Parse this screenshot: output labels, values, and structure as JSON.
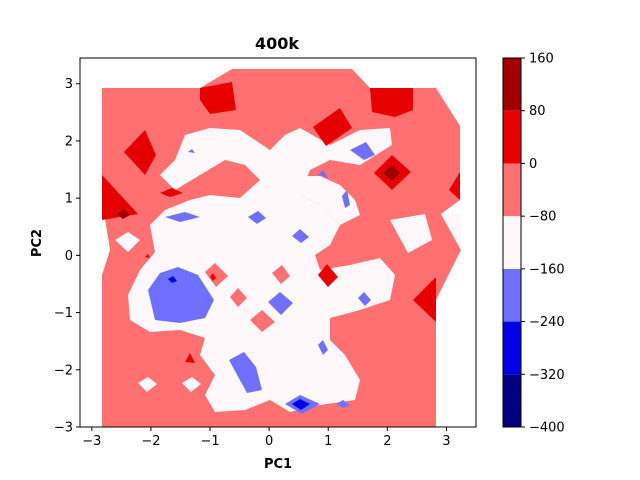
{
  "chart_data": {
    "type": "contour",
    "title": "400k",
    "xlabel": "PC1",
    "ylabel": "PC2",
    "xlim": [
      -3.2,
      3.5
    ],
    "ylim": [
      -3,
      3.45
    ],
    "xticks": [
      -3,
      -2,
      -1,
      0,
      1,
      2,
      3
    ],
    "xtick_labels": [
      "−3",
      "−2",
      "−1",
      "0",
      "1",
      "2",
      "3"
    ],
    "yticks": [
      -3,
      -2,
      -1,
      0,
      1,
      2,
      3
    ],
    "ytick_labels": [
      "−3",
      "−2",
      "−1",
      "0",
      "1",
      "2",
      "3"
    ],
    "colorbar": {
      "levels": [
        -400,
        -320,
        -240,
        -160,
        -80,
        0,
        80,
        160
      ],
      "tick_labels": [
        "−400",
        "−320",
        "−240",
        "−160",
        "−80",
        "0",
        "80",
        "160"
      ],
      "colors": [
        "#000080",
        "#0000e6",
        "#7070ff",
        "#fff8fb",
        "#ff7070",
        "#e60000",
        "#a00000"
      ]
    },
    "palette": {
      "band_neg160_neg80": "#fff8fb",
      "band_neg80_0": "#ff7070",
      "band_0_80": "#e60000",
      "band_80_160": "#a00000",
      "band_neg240_neg160": "#7070ff",
      "band_neg320_neg240": "#0000e6"
    },
    "grid": false
  }
}
